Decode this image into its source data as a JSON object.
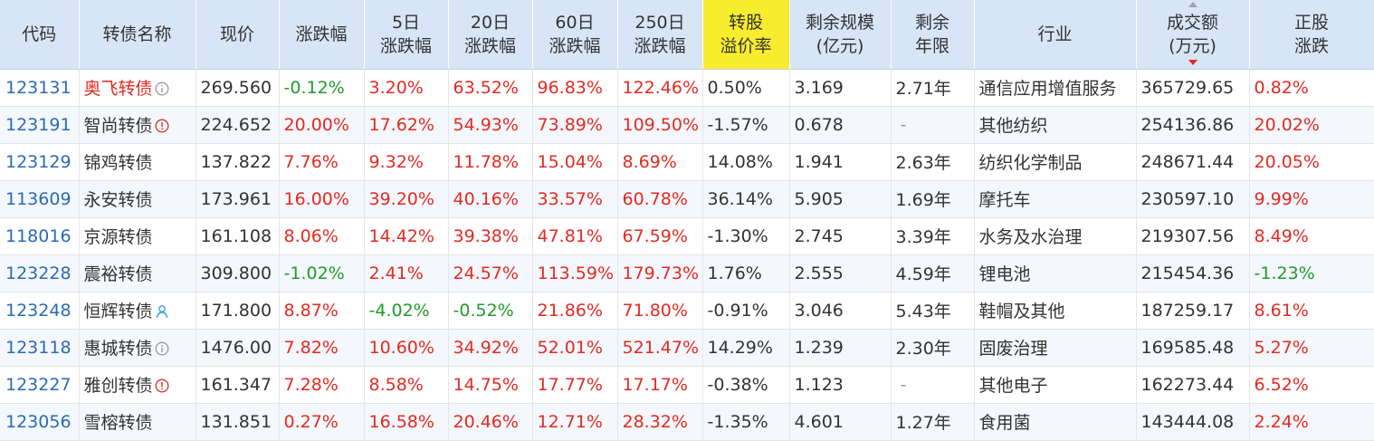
{
  "headers": {
    "code": "代码",
    "name": "转债名称",
    "price": "现价",
    "chg": "涨跌幅",
    "chg5_l1": "5日",
    "chg5_l2": "涨跌幅",
    "chg20_l1": "20日",
    "chg20_l2": "涨跌幅",
    "chg60_l1": "60日",
    "chg60_l2": "涨跌幅",
    "chg250_l1": "250日",
    "chg250_l2": "涨跌幅",
    "premium_l1": "转股",
    "premium_l2": "溢价率",
    "scale_l1": "剩余规模",
    "scale_l2": "(亿元)",
    "years_l1": "剩余",
    "years_l2": "年限",
    "industry": "行业",
    "turnover_l1": "成交额",
    "turnover_l2": "(万元)",
    "stockchg_l1": "正股",
    "stockchg_l2": "涨跌"
  },
  "highlight_color": "#f7ec2e",
  "up_color": "#e42a22",
  "down_color": "#1f9c2c",
  "code_color": "#2a6bb3",
  "rows": [
    {
      "code": "123131",
      "name": "奥飞转债",
      "icon": "circle-i-gray-icon",
      "price": "269.560",
      "chg": "-0.12%",
      "chg5": "3.20%",
      "chg20": "63.52%",
      "chg60": "96.83%",
      "chg250": "122.46%",
      "premium": "0.50%",
      "scale": "3.169",
      "years": "2.71年",
      "industry": "通信应用增值服务",
      "turnover": "365729.65",
      "stock_chg": "0.82%"
    },
    {
      "code": "123191",
      "name": "智尚转债",
      "icon": "circle-exclaim-red-icon",
      "price": "224.652",
      "chg": "20.00%",
      "chg5": "17.62%",
      "chg20": "54.93%",
      "chg60": "73.89%",
      "chg250": "109.50%",
      "premium": "-1.57%",
      "scale": "0.678",
      "years": "-",
      "industry": "其他纺织",
      "turnover": "254136.86",
      "stock_chg": "20.02%"
    },
    {
      "code": "123129",
      "name": "锦鸡转债",
      "icon": "",
      "price": "137.822",
      "chg": "7.76%",
      "chg5": "9.32%",
      "chg20": "11.78%",
      "chg60": "15.04%",
      "chg250": "8.69%",
      "premium": "14.08%",
      "scale": "1.941",
      "years": "2.63年",
      "industry": "纺织化学制品",
      "turnover": "248671.44",
      "stock_chg": "20.05%"
    },
    {
      "code": "113609",
      "name": "永安转债",
      "icon": "",
      "price": "173.961",
      "chg": "16.00%",
      "chg5": "39.20%",
      "chg20": "40.16%",
      "chg60": "33.57%",
      "chg250": "60.78%",
      "premium": "36.14%",
      "scale": "5.905",
      "years": "1.69年",
      "industry": "摩托车",
      "turnover": "230597.10",
      "stock_chg": "9.99%"
    },
    {
      "code": "118016",
      "name": "京源转债",
      "icon": "",
      "price": "161.108",
      "chg": "8.06%",
      "chg5": "14.42%",
      "chg20": "39.38%",
      "chg60": "47.81%",
      "chg250": "67.59%",
      "premium": "-1.30%",
      "scale": "2.745",
      "years": "3.39年",
      "industry": "水务及水治理",
      "turnover": "219307.56",
      "stock_chg": "8.49%"
    },
    {
      "code": "123228",
      "name": "震裕转债",
      "icon": "",
      "price": "309.800",
      "chg": "-1.02%",
      "chg5": "2.41%",
      "chg20": "24.57%",
      "chg60": "113.59%",
      "chg250": "179.73%",
      "premium": "1.76%",
      "scale": "2.555",
      "years": "4.59年",
      "industry": "锂电池",
      "turnover": "215454.36",
      "stock_chg": "-1.23%"
    },
    {
      "code": "123248",
      "name": "恒辉转债",
      "icon": "person-blue-icon",
      "price": "171.800",
      "chg": "8.87%",
      "chg5": "-4.02%",
      "chg20": "-0.52%",
      "chg60": "21.86%",
      "chg250": "71.80%",
      "premium": "-0.91%",
      "scale": "3.046",
      "years": "5.43年",
      "industry": "鞋帽及其他",
      "turnover": "187259.17",
      "stock_chg": "8.61%"
    },
    {
      "code": "123118",
      "name": "惠城转债",
      "icon": "circle-i-gray-icon",
      "price": "1476.00",
      "chg": "7.82%",
      "chg5": "10.60%",
      "chg20": "34.92%",
      "chg60": "52.01%",
      "chg250": "521.47%",
      "premium": "14.29%",
      "scale": "1.239",
      "years": "2.30年",
      "industry": "固废治理",
      "turnover": "169585.48",
      "stock_chg": "5.27%"
    },
    {
      "code": "123227",
      "name": "雅创转债",
      "icon": "circle-exclaim-red-icon",
      "price": "161.347",
      "chg": "7.28%",
      "chg5": "8.58%",
      "chg20": "14.75%",
      "chg60": "17.77%",
      "chg250": "17.17%",
      "premium": "-0.38%",
      "scale": "1.123",
      "years": "-",
      "industry": "其他电子",
      "turnover": "162273.44",
      "stock_chg": "6.52%"
    },
    {
      "code": "123056",
      "name": "雪榕转债",
      "icon": "",
      "price": "131.851",
      "chg": "0.27%",
      "chg5": "16.58%",
      "chg20": "20.46%",
      "chg60": "12.71%",
      "chg250": "28.32%",
      "premium": "-1.35%",
      "scale": "4.601",
      "years": "1.27年",
      "industry": "食用菌",
      "turnover": "143444.08",
      "stock_chg": "2.24%"
    }
  ]
}
